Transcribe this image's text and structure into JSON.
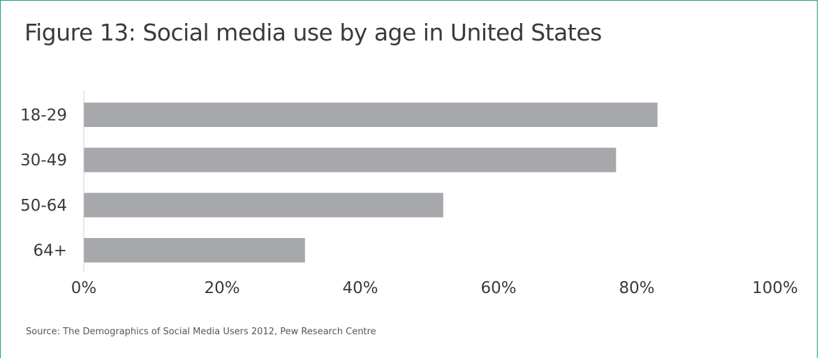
{
  "chart_data": {
    "type": "bar",
    "orientation": "horizontal",
    "title": "Figure 13: Social media use by age in United States",
    "categories": [
      "18-29",
      "30-49",
      "50-64",
      "64+"
    ],
    "values": [
      83,
      77,
      52,
      32
    ],
    "x_ticks": [
      "0%",
      "20%",
      "40%",
      "60%",
      "80%",
      "100%"
    ],
    "xlim": [
      0,
      100
    ],
    "xlabel": "",
    "ylabel": "",
    "grid": false,
    "legend": "none",
    "bar_color": "#a7a8ab",
    "source": "Source: The Demographics of Social Media Users 2012, Pew Research Centre"
  },
  "colors": {
    "border": "#1a9a86",
    "text": "#3a3a3a",
    "axis": "#cccccc"
  }
}
